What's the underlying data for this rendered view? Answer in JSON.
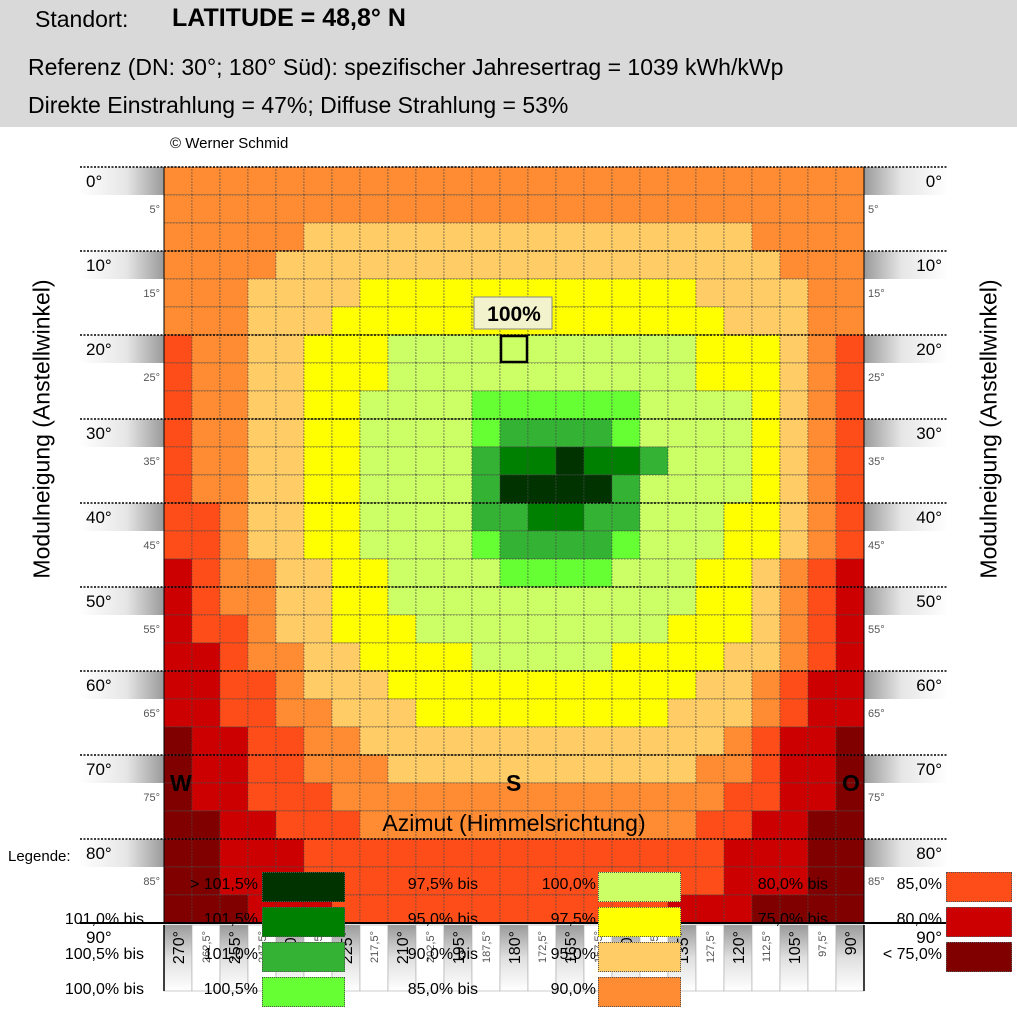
{
  "header": {
    "location_label": "Standort:",
    "latitude_text": "LATITUDE = 48,8° N",
    "reference_text": "Referenz (DN: 30°; 180° Süd): spezifischer Jahresertrag = 1039 kWh/kWp",
    "radiation_text": "Direkte Einstrahlung = 47%; Diffuse Strahlung = 53%",
    "credit": "© Werner Schmid"
  },
  "chart_data": {
    "type": "heatmap",
    "xlabel": "Azimut (Himmelsrichtung)",
    "ylabel": "Modulneigung (Anstellwinkel)",
    "x_major": [
      "270°",
      "255°",
      "240°",
      "225°",
      "210°",
      "195°",
      "180°",
      "165°",
      "150°",
      "135°",
      "120°",
      "105°",
      "90°"
    ],
    "x_minor": [
      "262,5°",
      "247,5°",
      "232,5°",
      "217,5°",
      "202,5°",
      "187,5°",
      "172,5°",
      "157,5°",
      "142,5°",
      "127,5°",
      "112,5°",
      "97,5°"
    ],
    "y_major": [
      "0°",
      "10°",
      "20°",
      "30°",
      "40°",
      "50°",
      "60°",
      "70°",
      "80°",
      "90°"
    ],
    "y_minor": [
      "5°",
      "15°",
      "25°",
      "35°",
      "45°",
      "55°",
      "65°",
      "75°",
      "85°"
    ],
    "direction_labels": [
      {
        "label": "W",
        "col": 0
      },
      {
        "label": "S",
        "col": 12
      },
      {
        "label": "O",
        "col": 24
      }
    ],
    "reference": {
      "label": "100%",
      "row": 6,
      "col": 12
    },
    "class_colors": {
      "A": "#003300",
      "B": "#008000",
      "C": "#33b233",
      "D": "#66ff33",
      "E": "#ccff66",
      "F": "#ffff00",
      "G": "#ffcc66",
      "H": "#ff8c33",
      "I": "#ff4d1a",
      "J": "#cc0000",
      "K": "#800000"
    },
    "rows": [
      "HHHHHHHHHHHHHHHHHHHHHHHHH",
      "HHHHHHHHHHHHHHHHHHHHHHHHH",
      "HHHHHGGGGGGGGGGGGGGGGHHHH",
      "HHHHGGGGGGGGGGGGGGGGGGHHH",
      "HHHGGGGFFFFFFFFFFFFGGGGHH",
      "HHHGGGFFFFFFFFFFFFFFGGGHH",
      "IHHGGFFFEEEEEEEEEEEFFFGHI",
      "IHHGGFFFEEEEEEEEEEEFFFGHI",
      "IHHGGFFEEEEDDDDDDEEEEFGHI",
      "IHHGGFFEEEEDCCCCDEEEEFGHI",
      "IHHGGFFEEEECBBABBCEEEFGHI",
      "IHHGGFFEEEECAAAACEEEEFGHI",
      "IIHGGFFEEEECCBBCCEEEFFGHI",
      "IIHGGFFEEEEDCCCCDEEEFFGHI",
      "JIHHGGFFEEEEDDDDEEEFFGHIJ",
      "JIHHGGFFEEEEEEEEEEEFFGHIJ",
      "JIIHGGFFFEEEEEEEEEFFFGHIJ",
      "JJIHHGGFFFFEEEEEFFFFGGHIJ",
      "JJIIHGGGFFFFFFFFFFFGGHIJJ",
      "JJIIHHGGGFFFFFFFFFGGGHIJJ",
      "KJJIIHHGGGGGGGGGGGGGHIJJK",
      "KJJIIHHHGGGGGGGGGGGHHIJJK",
      "KJJIIIHHHHHHHHHHHHHHIIJJK",
      "KKJJIIIHHHHHHHHHHHHIIJJKK",
      "KKJJJIIIIIIIIIIIIIIIJJJKK",
      "KKJJJIIIIIIIIIIIIIIIJJJKK",
      "KKKJJJIIIIIIIIIIIIJJJKKKK"
    ],
    "legend": [
      {
        "range": [
          "> 101,5%"
        ],
        "class": "A"
      },
      {
        "range": [
          "101,0% bis",
          "101,5%"
        ],
        "class": "B"
      },
      {
        "range": [
          "100,5% bis",
          "101,0%"
        ],
        "class": "C"
      },
      {
        "range": [
          "100,0% bis",
          "100,5%"
        ],
        "class": "D"
      },
      {
        "range": [
          "97,5% bis",
          "100,0%"
        ],
        "class": "E"
      },
      {
        "range": [
          "95,0% bis",
          "97,5%"
        ],
        "class": "F"
      },
      {
        "range": [
          "90,0% bis",
          "95,0%"
        ],
        "class": "G"
      },
      {
        "range": [
          "85,0% bis",
          "90,0%"
        ],
        "class": "H"
      },
      {
        "range": [
          "80,0% bis",
          "85,0%"
        ],
        "class": "I"
      },
      {
        "range": [
          "75,0% bis",
          "80,0%"
        ],
        "class": "J"
      },
      {
        "range": [
          "< 75,0%"
        ],
        "class": "K"
      }
    ]
  },
  "legend_title": "Legende:"
}
